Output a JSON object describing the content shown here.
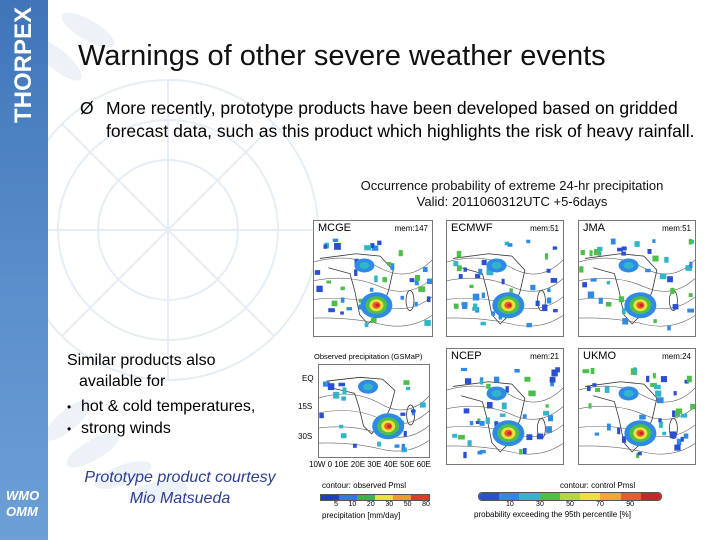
{
  "sidebar": {
    "title": "THORPEX",
    "logo_line1": "WMO",
    "logo_line2": "OMM"
  },
  "slide": {
    "title": "Warnings of other severe weather events",
    "bullet_symbol": "Ø",
    "bullet_text": "More recently, prototype products have been developed based on gridded forecast data, such as this product which highlights the risk of heavy rainfall."
  },
  "figure": {
    "title_line1": "Occurrence probability of extreme 24-hr precipitation",
    "title_line2": "Valid: 2011060312UTC +5-6days",
    "panels": [
      {
        "name": "MCGE",
        "mem": "mem:147"
      },
      {
        "name": "ECMWF",
        "mem": "mem:51"
      },
      {
        "name": "JMA",
        "mem": "mem:51"
      },
      {
        "name": "NCEP",
        "mem": "mem:21"
      },
      {
        "name": "UKMO",
        "mem": "mem:24"
      }
    ],
    "observed_title": "Observed precipitation (GSMaP)",
    "lat_labels": [
      "EQ",
      "15S",
      "30S"
    ],
    "lon_labels": "10W 0 10E 20E 30E 40E 50E 60E",
    "obs_contour": "contour: observed Pmsl",
    "obs_ticks": [
      "5",
      "10",
      "20",
      "30",
      "50",
      "80"
    ],
    "obs_colorbar_label": "precipitation [mm/day]",
    "fc_contour": "contour: control Pmsl",
    "fc_ticks": [
      "10",
      "30",
      "50",
      "70",
      "90"
    ],
    "fc_colorbar_label": "probability exceeding the 95th percentile [%]"
  },
  "side_text": {
    "intro_line1": "Similar products also",
    "intro_line2": "available for",
    "items": [
      "hot & cold temperatures,",
      "strong winds"
    ]
  },
  "courtesy": {
    "line1": "Prototype product courtesy",
    "line2": "Mio Matsueda"
  },
  "colors": {
    "sidebar": "#3f75b8",
    "courtesy_text": "#2c3e8c"
  }
}
